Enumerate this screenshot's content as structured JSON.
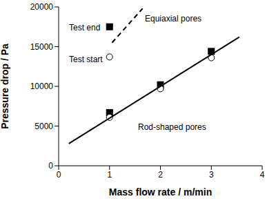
{
  "chart_data": {
    "type": "scatter",
    "x_label": "Mass flow rate / m/min",
    "y_label": "Pressure drop / Pa",
    "xlim": [
      0,
      4
    ],
    "xticks": [
      0,
      1,
      2,
      3,
      4
    ],
    "ylim": [
      0,
      20000
    ],
    "yticks": [
      0,
      5000,
      10000,
      15000,
      20000
    ],
    "grid": false,
    "series": [
      {
        "name": "Test end",
        "type": "scatter",
        "marker": "square",
        "color": "#000000",
        "x": [
          1,
          1,
          2,
          3
        ],
        "values": [
          6700,
          17500,
          10200,
          14400
        ]
      },
      {
        "name": "Test start",
        "type": "scatter",
        "marker": "circle",
        "color": "#000000",
        "x": [
          1,
          1,
          2,
          3
        ],
        "values": [
          6100,
          13700,
          9700,
          13600
        ]
      },
      {
        "name": "Equiaxial pores",
        "type": "line",
        "line_style": "dashed",
        "color": "#000000",
        "x": [
          1.05,
          1.65
        ],
        "values": [
          15500,
          19800
        ]
      },
      {
        "name": "Rod-shaped pores",
        "type": "line",
        "line_style": "solid",
        "color": "#000000",
        "x": [
          0.2,
          3.55
        ],
        "values": [
          2800,
          16200
        ]
      }
    ]
  }
}
